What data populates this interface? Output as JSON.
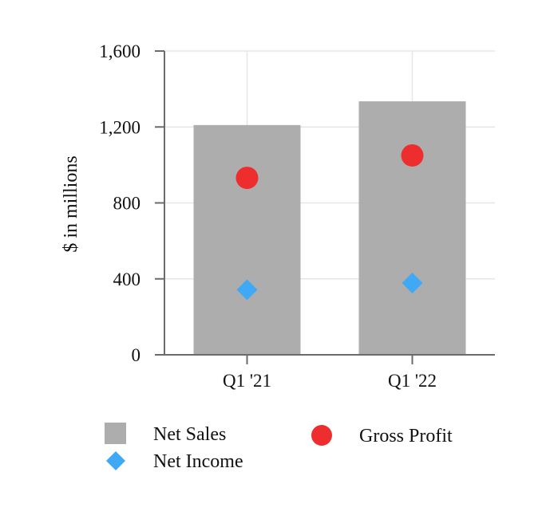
{
  "chart_data": {
    "type": "bar",
    "title": "",
    "xlabel": "",
    "ylabel": "$ in millions",
    "ylim": [
      0,
      1600
    ],
    "yticks": [
      0,
      400,
      800,
      1200,
      1600
    ],
    "ytick_labels": [
      "0",
      "400",
      "800",
      "1,200",
      "1,600"
    ],
    "categories": [
      "Q1 '21",
      "Q1 '22"
    ],
    "grid": true,
    "series": [
      {
        "name": "Net Sales",
        "kind": "bar",
        "marker": "square",
        "color": "#adadad",
        "values": [
          1210,
          1335
        ]
      },
      {
        "name": "Gross Profit",
        "kind": "point",
        "marker": "circle",
        "color": "#ee2e2e",
        "values": [
          932,
          1050
        ]
      },
      {
        "name": "Net Income",
        "kind": "point",
        "marker": "diamond",
        "color": "#3fa9f5",
        "values": [
          343,
          378
        ]
      }
    ],
    "legend_position": "bottom"
  },
  "colors": {
    "axis": "#6b6b6b",
    "grid": "#e6e6e6"
  }
}
